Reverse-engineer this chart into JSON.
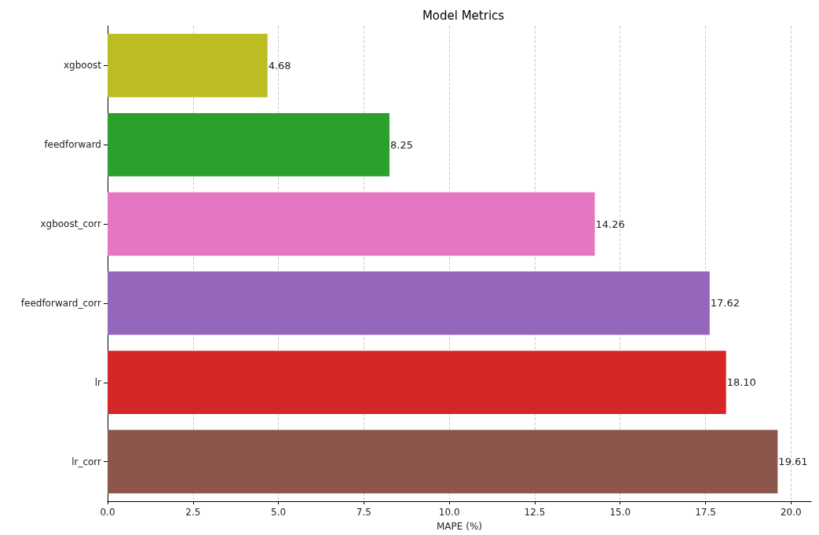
{
  "chart_data": {
    "type": "bar",
    "orientation": "horizontal",
    "title": "Model Metrics",
    "xlabel": "MAPE (%)",
    "categories": [
      "xgboost",
      "feedforward",
      "xgboost_corr",
      "feedforward_corr",
      "lr",
      "lr_corr"
    ],
    "values": [
      4.68,
      8.25,
      14.26,
      17.62,
      18.1,
      19.61
    ],
    "value_labels": [
      "4.68",
      "8.25",
      "14.26",
      "17.62",
      "18.10",
      "19.61"
    ],
    "colors": [
      "#bcbd22",
      "#2ca02c",
      "#e377c2",
      "#9467bd",
      "#d62728",
      "#8c564b"
    ],
    "xlim": [
      0,
      20.59
    ],
    "xticks": [
      {
        "value": 0,
        "label": "0.0"
      },
      2.5,
      {
        "value": 5,
        "label": "5.0"
      },
      7.5,
      {
        "value": 10,
        "label": "10.0"
      },
      12.5,
      {
        "value": 15,
        "label": "15.0"
      },
      17.5,
      {
        "value": 20,
        "label": "20.0"
      }
    ],
    "grid": "x"
  }
}
